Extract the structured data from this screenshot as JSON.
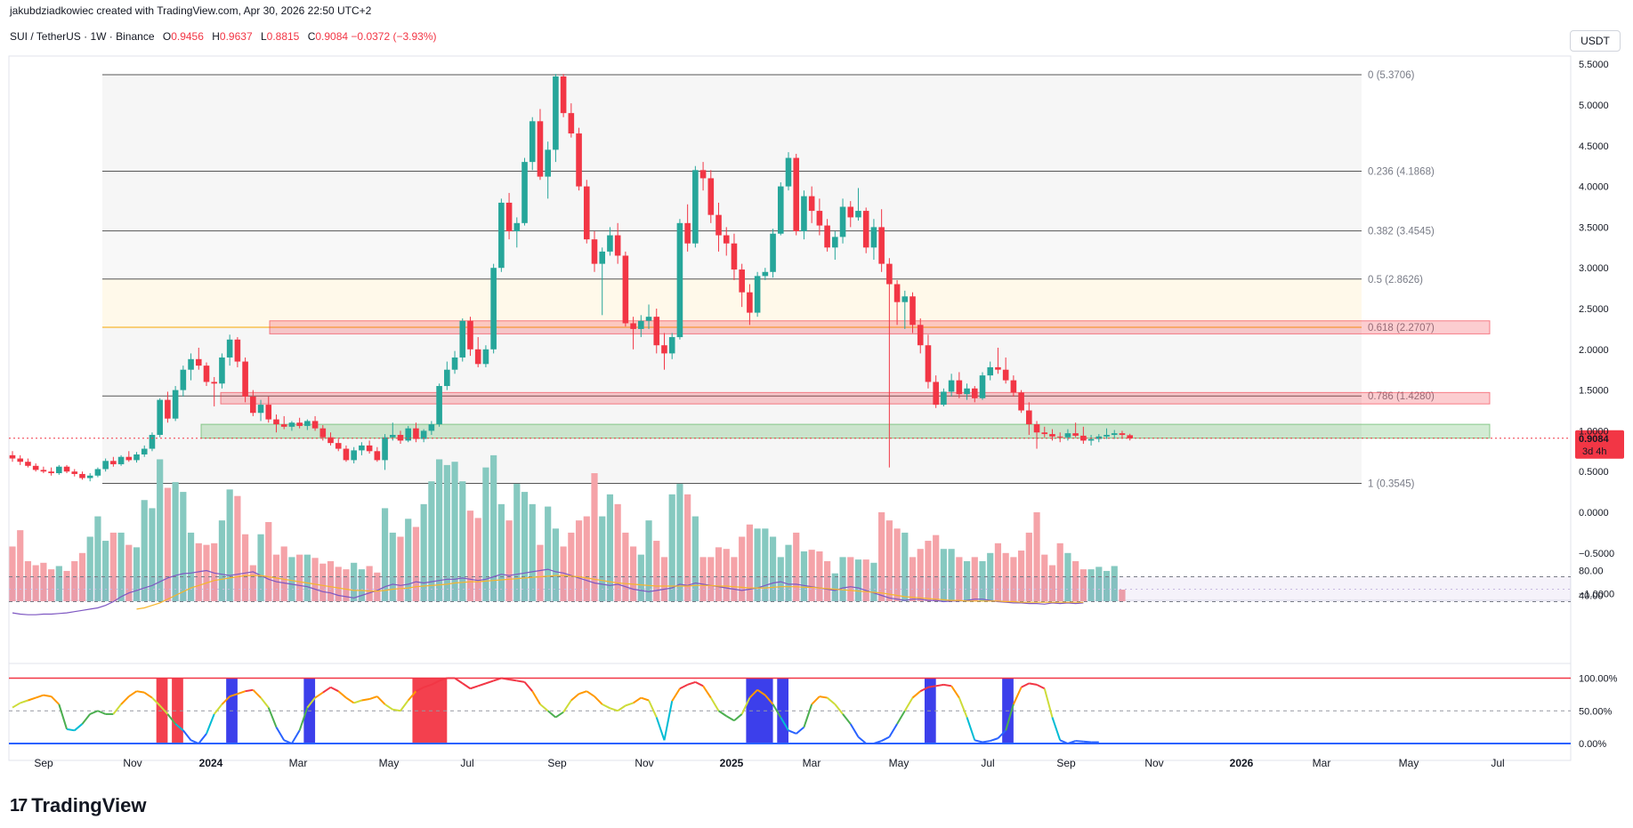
{
  "header": {
    "credit": "jakubdziadkowiec created with TradingView.com, Apr 30, 2026 22:50 UTC+2"
  },
  "symbol": {
    "name": "SUI / TetherUS · 1W · Binance",
    "o_label": "O",
    "o": "0.9456",
    "h_label": "H",
    "h": "0.9637",
    "l_label": "L",
    "l": "0.8815",
    "c_label": "C",
    "c": "0.9084",
    "change": "−0.0372 (−3.93%)"
  },
  "currency": "USDT",
  "brand": "TradingView",
  "colors": {
    "up": "#26a69a",
    "down": "#f23645",
    "fib_gold": "#f7a600",
    "volume_up": "#86c9c0",
    "volume_down": "#f5a3a8"
  },
  "chart_data": {
    "type": "candlestick",
    "price_axis": [
      "5.5000",
      "5.0000",
      "4.5000",
      "4.0000",
      "3.5000",
      "3.0000",
      "2.5000",
      "2.0000",
      "1.5000",
      "1.0000",
      "0.5000",
      "0.0000",
      "−0.5000",
      "−1.0000"
    ],
    "oscillator_axis": [
      "80.00",
      "40.00"
    ],
    "stoch_axis": [
      "100.00%",
      "50.00%",
      "0.00%"
    ],
    "x_labels": [
      "Sep",
      "Nov",
      "2024",
      "Mar",
      "May",
      "Jul",
      "Sep",
      "Nov",
      "2025",
      "Mar",
      "May",
      "Jul",
      "Sep",
      "Nov",
      "2026",
      "Mar",
      "May",
      "Jul"
    ],
    "last_price": "0.9084",
    "countdown": "3d 4h",
    "fib_levels": [
      {
        "ratio": 0,
        "label": "0 (5.3706)",
        "price": 5.3706
      },
      {
        "ratio": 0.236,
        "label": "0.236 (4.1868)",
        "price": 4.1868
      },
      {
        "ratio": 0.382,
        "label": "0.382 (3.4545)",
        "price": 3.4545
      },
      {
        "ratio": 0.5,
        "label": "0.5 (2.8626)",
        "price": 2.8626
      },
      {
        "ratio": 0.618,
        "label": "0.618 (2.2707)",
        "price": 2.2707
      },
      {
        "ratio": 0.786,
        "label": "0.786 (1.4280)",
        "price": 1.428
      },
      {
        "ratio": 1,
        "label": "1 (0.3545)",
        "price": 0.3545
      }
    ],
    "zones": [
      {
        "name": "resistance-zone-upper",
        "low": 2.19,
        "high": 2.35,
        "color": "#f23645"
      },
      {
        "name": "resistance-zone-lower",
        "low": 1.33,
        "high": 1.47,
        "color": "#f23645"
      },
      {
        "name": "support-zone",
        "low": 0.91,
        "high": 1.08,
        "color": "#4caf50"
      }
    ],
    "candles": [
      [
        0.7,
        0.75,
        0.62,
        0.66
      ],
      [
        0.66,
        0.7,
        0.58,
        0.62
      ],
      [
        0.62,
        0.66,
        0.55,
        0.57
      ],
      [
        0.57,
        0.6,
        0.5,
        0.52
      ],
      [
        0.52,
        0.56,
        0.48,
        0.5
      ],
      [
        0.5,
        0.55,
        0.45,
        0.48
      ],
      [
        0.48,
        0.58,
        0.46,
        0.56
      ],
      [
        0.56,
        0.58,
        0.48,
        0.5
      ],
      [
        0.5,
        0.53,
        0.44,
        0.47
      ],
      [
        0.47,
        0.5,
        0.4,
        0.42
      ],
      [
        0.42,
        0.48,
        0.38,
        0.45
      ],
      [
        0.45,
        0.55,
        0.43,
        0.53
      ],
      [
        0.53,
        0.66,
        0.5,
        0.63
      ],
      [
        0.63,
        0.68,
        0.56,
        0.59
      ],
      [
        0.59,
        0.7,
        0.57,
        0.68
      ],
      [
        0.68,
        0.75,
        0.62,
        0.64
      ],
      [
        0.64,
        0.74,
        0.61,
        0.71
      ],
      [
        0.71,
        0.82,
        0.68,
        0.78
      ],
      [
        0.78,
        0.98,
        0.75,
        0.95
      ],
      [
        0.95,
        1.4,
        0.92,
        1.38
      ],
      [
        1.38,
        1.48,
        1.1,
        1.15
      ],
      [
        1.15,
        1.55,
        1.12,
        1.5
      ],
      [
        1.5,
        1.8,
        1.42,
        1.75
      ],
      [
        1.75,
        1.95,
        1.62,
        1.88
      ],
      [
        1.88,
        2.02,
        1.75,
        1.8
      ],
      [
        1.8,
        1.84,
        1.55,
        1.6
      ],
      [
        1.6,
        1.66,
        1.3,
        1.58
      ],
      [
        1.58,
        1.95,
        1.52,
        1.9
      ],
      [
        1.9,
        2.18,
        1.8,
        2.12
      ],
      [
        2.12,
        2.15,
        1.78,
        1.85
      ],
      [
        1.85,
        1.9,
        1.35,
        1.42
      ],
      [
        1.42,
        1.5,
        1.18,
        1.22
      ],
      [
        1.22,
        1.38,
        1.12,
        1.32
      ],
      [
        1.32,
        1.42,
        1.1,
        1.14
      ],
      [
        1.14,
        1.2,
        0.98,
        1.08
      ],
      [
        1.08,
        1.18,
        1.02,
        1.05
      ],
      [
        1.05,
        1.12,
        1.0,
        1.1
      ],
      [
        1.1,
        1.16,
        1.03,
        1.06
      ],
      [
        1.06,
        1.14,
        1.01,
        1.12
      ],
      [
        1.12,
        1.18,
        1.0,
        1.03
      ],
      [
        1.03,
        1.07,
        0.88,
        0.92
      ],
      [
        0.92,
        0.98,
        0.82,
        0.85
      ],
      [
        0.85,
        0.9,
        0.75,
        0.78
      ],
      [
        0.78,
        0.82,
        0.62,
        0.64
      ],
      [
        0.64,
        0.8,
        0.6,
        0.76
      ],
      [
        0.76,
        0.86,
        0.7,
        0.82
      ],
      [
        0.82,
        0.88,
        0.72,
        0.75
      ],
      [
        0.75,
        0.8,
        0.62,
        0.64
      ],
      [
        0.64,
        0.96,
        0.52,
        0.92
      ],
      [
        0.92,
        1.1,
        0.88,
        0.95
      ],
      [
        0.95,
        1.0,
        0.84,
        0.88
      ],
      [
        0.88,
        1.06,
        0.86,
        1.03
      ],
      [
        1.03,
        1.1,
        0.86,
        0.9
      ],
      [
        0.9,
        1.02,
        0.86,
        1.0
      ],
      [
        1.0,
        1.12,
        0.95,
        1.08
      ],
      [
        1.08,
        1.58,
        1.05,
        1.55
      ],
      [
        1.55,
        1.85,
        1.5,
        1.75
      ],
      [
        1.75,
        1.98,
        1.7,
        1.9
      ],
      [
        1.9,
        2.38,
        1.85,
        2.35
      ],
      [
        2.35,
        2.4,
        1.92,
        2.0
      ],
      [
        2.0,
        2.15,
        1.78,
        1.82
      ],
      [
        1.82,
        2.05,
        1.78,
        2.0
      ],
      [
        2.0,
        3.05,
        1.95,
        3.0
      ],
      [
        3.0,
        3.85,
        2.95,
        3.8
      ],
      [
        3.8,
        3.92,
        3.35,
        3.45
      ],
      [
        3.45,
        3.62,
        3.25,
        3.55
      ],
      [
        3.55,
        4.35,
        3.52,
        4.3
      ],
      [
        4.3,
        4.85,
        4.2,
        4.8
      ],
      [
        4.8,
        4.95,
        4.08,
        4.12
      ],
      [
        4.12,
        4.55,
        3.85,
        4.45
      ],
      [
        4.45,
        5.38,
        4.3,
        5.35
      ],
      [
        5.35,
        5.38,
        4.85,
        4.9
      ],
      [
        4.9,
        5.02,
        4.6,
        4.65
      ],
      [
        4.65,
        4.72,
        3.95,
        4.0
      ],
      [
        4.0,
        4.08,
        3.3,
        3.35
      ],
      [
        3.35,
        3.45,
        2.95,
        3.05
      ],
      [
        3.05,
        3.25,
        2.42,
        3.2
      ],
      [
        3.2,
        3.5,
        3.15,
        3.4
      ],
      [
        3.4,
        3.55,
        3.05,
        3.15
      ],
      [
        3.15,
        3.2,
        2.28,
        2.32
      ],
      [
        2.32,
        2.4,
        2.0,
        2.25
      ],
      [
        2.25,
        2.42,
        2.15,
        2.35
      ],
      [
        2.35,
        2.55,
        2.25,
        2.4
      ],
      [
        2.4,
        2.5,
        1.95,
        2.05
      ],
      [
        2.05,
        2.2,
        1.75,
        1.95
      ],
      [
        1.95,
        2.2,
        1.88,
        2.15
      ],
      [
        2.15,
        3.6,
        2.12,
        3.55
      ],
      [
        3.55,
        3.78,
        3.2,
        3.3
      ],
      [
        3.3,
        4.25,
        3.25,
        4.2
      ],
      [
        4.2,
        4.3,
        3.95,
        4.1
      ],
      [
        4.1,
        4.2,
        3.55,
        3.65
      ],
      [
        3.65,
        3.8,
        3.2,
        3.4
      ],
      [
        3.4,
        3.5,
        3.15,
        3.3
      ],
      [
        3.3,
        3.42,
        2.85,
        2.98
      ],
      [
        2.98,
        3.05,
        2.52,
        2.7
      ],
      [
        2.7,
        2.8,
        2.3,
        2.45
      ],
      [
        2.45,
        2.95,
        2.4,
        2.9
      ],
      [
        2.9,
        3.0,
        2.85,
        2.95
      ],
      [
        2.95,
        3.48,
        2.88,
        3.42
      ],
      [
        3.42,
        4.05,
        3.4,
        4.0
      ],
      [
        4.0,
        4.42,
        3.95,
        4.35
      ],
      [
        4.35,
        4.4,
        3.4,
        3.45
      ],
      [
        3.45,
        3.95,
        3.35,
        3.88
      ],
      [
        3.88,
        4.0,
        3.55,
        3.7
      ],
      [
        3.7,
        3.85,
        3.4,
        3.52
      ],
      [
        3.52,
        3.6,
        3.2,
        3.25
      ],
      [
        3.25,
        3.45,
        3.1,
        3.38
      ],
      [
        3.38,
        3.85,
        3.3,
        3.75
      ],
      [
        3.75,
        3.82,
        3.5,
        3.62
      ],
      [
        3.62,
        3.98,
        3.58,
        3.7
      ],
      [
        3.7,
        3.74,
        3.18,
        3.25
      ],
      [
        3.25,
        3.6,
        3.1,
        3.5
      ],
      [
        3.5,
        3.72,
        2.95,
        3.05
      ],
      [
        3.05,
        3.12,
        0.55,
        2.8
      ],
      [
        2.8,
        2.85,
        2.3,
        2.58
      ],
      [
        2.58,
        2.72,
        2.25,
        2.65
      ],
      [
        2.65,
        2.7,
        2.2,
        2.3
      ],
      [
        2.3,
        2.38,
        1.95,
        2.05
      ],
      [
        2.05,
        2.18,
        1.52,
        1.6
      ],
      [
        1.6,
        1.68,
        1.28,
        1.32
      ],
      [
        1.32,
        1.52,
        1.3,
        1.48
      ],
      [
        1.48,
        1.7,
        1.42,
        1.62
      ],
      [
        1.62,
        1.72,
        1.4,
        1.45
      ],
      [
        1.45,
        1.58,
        1.38,
        1.52
      ],
      [
        1.52,
        1.55,
        1.35,
        1.4
      ],
      [
        1.4,
        1.72,
        1.38,
        1.68
      ],
      [
        1.68,
        1.85,
        1.62,
        1.78
      ],
      [
        1.78,
        2.02,
        1.7,
        1.75
      ],
      [
        1.75,
        1.9,
        1.58,
        1.62
      ],
      [
        1.62,
        1.68,
        1.42,
        1.47
      ],
      [
        1.47,
        1.5,
        1.22,
        1.25
      ],
      [
        1.25,
        1.35,
        0.95,
        1.08
      ],
      [
        1.08,
        1.12,
        0.78,
        0.98
      ],
      [
        0.98,
        1.05,
        0.92,
        0.96
      ],
      [
        0.96,
        1.02,
        0.88,
        0.93
      ],
      [
        0.93,
        0.98,
        0.86,
        0.92
      ],
      [
        0.92,
        1.02,
        0.88,
        0.97
      ],
      [
        0.97,
        1.1,
        0.92,
        0.94
      ],
      [
        0.94,
        1.05,
        0.84,
        0.88
      ],
      [
        0.88,
        0.95,
        0.82,
        0.9
      ],
      [
        0.9,
        0.96,
        0.86,
        0.93
      ],
      [
        0.93,
        1.03,
        0.9,
        0.95
      ],
      [
        0.95,
        1.01,
        0.9,
        0.97
      ],
      [
        0.97,
        1.0,
        0.91,
        0.95
      ],
      [
        0.9456,
        0.9637,
        0.8815,
        0.9084
      ]
    ],
    "volume": [
      -0.42,
      -0.22,
      -0.6,
      -0.65,
      -0.62,
      -0.7,
      -0.66,
      -0.72,
      -0.6,
      -0.5,
      -0.3,
      -0.05,
      -0.35,
      -0.25,
      -0.25,
      -0.4,
      -0.43,
      0.15,
      0.05,
      0.65,
      0.3,
      0.37,
      0.25,
      -0.25,
      -0.38,
      -0.4,
      -0.38,
      -0.1,
      0.28,
      0.2,
      -0.27,
      -0.65,
      -0.27,
      -0.12,
      -0.52,
      -0.42,
      -0.55,
      -0.52,
      -0.52,
      -0.56,
      -0.63,
      -0.6,
      -0.67,
      -0.7,
      -0.62,
      -0.7,
      -0.66,
      -0.74,
      0.05,
      -0.25,
      -0.3,
      -0.08,
      -0.18,
      0.1,
      0.38,
      0.65,
      0.58,
      0.62,
      0.38,
      0.02,
      -0.07,
      0.55,
      0.7,
      0.1,
      -0.1,
      0.35,
      0.25,
      0.1,
      -0.4,
      0.07,
      -0.2,
      -0.42,
      -0.25,
      -0.1,
      -0.05,
      0.48,
      -0.05,
      0.22,
      0.1,
      -0.25,
      -0.42,
      -0.52,
      -0.1,
      -0.35,
      -0.55,
      0.22,
      0.35,
      0.22,
      -0.05,
      -0.55,
      -0.55,
      -0.43,
      -0.45,
      -0.55,
      -0.3,
      -0.15,
      -0.2,
      -0.2,
      -0.3,
      -0.55,
      -0.4,
      -0.25,
      -0.48,
      -0.46,
      -0.48,
      -0.6,
      -0.75,
      -0.55,
      -0.55,
      -0.58,
      -0.58,
      -0.62,
      0.0,
      -0.1,
      -0.2,
      -0.25,
      -0.55,
      -0.45,
      -0.35,
      -0.28,
      -0.45,
      -0.45,
      -0.55,
      -0.6,
      -0.55,
      -0.6,
      -0.5,
      -0.38,
      -0.5,
      -0.55,
      -0.47,
      -0.25,
      0.0,
      -0.52,
      -0.65,
      -0.38,
      -0.5,
      -0.6,
      -0.7,
      -0.7,
      -0.67,
      -0.72,
      -0.66,
      -0.95
    ],
    "oscillator": [
      12,
      10,
      9,
      9,
      10,
      10,
      11,
      12,
      14,
      16,
      18,
      20,
      24,
      30,
      38,
      44,
      48,
      52,
      56,
      62,
      68,
      72,
      75,
      76,
      78,
      80,
      76,
      74,
      72,
      74,
      76,
      78,
      72,
      66,
      62,
      60,
      58,
      56,
      54,
      50,
      46,
      44,
      40,
      38,
      36,
      40,
      44,
      48,
      54,
      58,
      56,
      58,
      62,
      60,
      62,
      64,
      66,
      66,
      68,
      66,
      64,
      66,
      70,
      74,
      72,
      74,
      76,
      78,
      80,
      82,
      78,
      76,
      72,
      68,
      64,
      60,
      58,
      56,
      58,
      54,
      50,
      48,
      46,
      48,
      50,
      52,
      58,
      56,
      60,
      58,
      56,
      54,
      52,
      50,
      48,
      50,
      52,
      56,
      60,
      62,
      58,
      58,
      56,
      54,
      52,
      50,
      48,
      52,
      54,
      52,
      48,
      44,
      40,
      36,
      34,
      32,
      34,
      34,
      32,
      32,
      30,
      31,
      31,
      32,
      34,
      34,
      32,
      30,
      29,
      28,
      28,
      27,
      27,
      26,
      28,
      27,
      28,
      27,
      28
    ],
    "oscillator_ma": [
      null,
      null,
      null,
      null,
      null,
      null,
      null,
      null,
      null,
      null,
      null,
      null,
      null,
      null,
      null,
      null,
      18,
      20,
      24,
      28,
      34,
      40,
      46,
      52,
      56,
      60,
      64,
      66,
      68,
      70,
      72,
      72,
      72,
      70,
      68,
      66,
      64,
      62,
      60,
      58,
      56,
      54,
      52,
      50,
      48,
      48,
      47,
      47,
      48,
      50,
      51,
      52,
      54,
      55,
      56,
      57,
      58,
      60,
      61,
      62,
      62,
      63,
      64,
      65,
      66,
      67,
      68,
      69,
      70,
      71,
      72,
      72,
      71,
      70,
      68,
      66,
      64,
      62,
      60,
      59,
      58,
      57,
      56,
      55,
      55,
      55,
      55,
      55,
      56,
      56,
      56,
      55,
      55,
      54,
      53,
      52,
      52,
      52,
      53,
      54,
      54,
      54,
      53,
      53,
      52,
      51,
      50,
      49,
      48,
      47,
      46,
      45,
      44,
      42,
      40,
      38,
      37,
      36,
      35,
      34,
      33,
      32,
      32,
      31,
      31,
      31,
      31,
      31,
      30,
      30,
      29,
      29,
      29,
      29,
      29,
      29,
      29,
      29,
      29
    ],
    "stoch": [
      55,
      62,
      66,
      70,
      74,
      72,
      60,
      22,
      20,
      30,
      45,
      50,
      45,
      45,
      60,
      72,
      80,
      78,
      70,
      58,
      45,
      30,
      20,
      5,
      0,
      15,
      45,
      60,
      72,
      76,
      80,
      82,
      70,
      55,
      25,
      5,
      0,
      20,
      55,
      70,
      78,
      86,
      80,
      70,
      62,
      66,
      68,
      72,
      60,
      52,
      50,
      66,
      80,
      86,
      90,
      96,
      100,
      100,
      92,
      84,
      88,
      92,
      96,
      100,
      98,
      96,
      94,
      80,
      60,
      50,
      40,
      48,
      66,
      76,
      80,
      72,
      60,
      54,
      50,
      58,
      62,
      70,
      66,
      40,
      5,
      65,
      84,
      90,
      94,
      88,
      70,
      50,
      42,
      35,
      45,
      70,
      82,
      74,
      60,
      40,
      20,
      15,
      25,
      60,
      72,
      70,
      60,
      45,
      30,
      10,
      0,
      0,
      4,
      10,
      30,
      50,
      70,
      80,
      86,
      88,
      90,
      88,
      70,
      40,
      5,
      2,
      4,
      8,
      20,
      60,
      86,
      92,
      90,
      84,
      40,
      5,
      0,
      4,
      3,
      2,
      2
    ],
    "stoch_zones": [
      {
        "start": 19,
        "end": 20,
        "color": "#f23645"
      },
      {
        "start": 21,
        "end": 22,
        "color": "#f23645"
      },
      {
        "start": 28,
        "end": 29,
        "color": "#3135ea"
      },
      {
        "start": 38,
        "end": 39,
        "color": "#3135ea"
      },
      {
        "start": 52,
        "end": 56,
        "color": "#f23645"
      },
      {
        "start": 95,
        "end": 98,
        "color": "#3135ea"
      },
      {
        "start": 99,
        "end": 100,
        "color": "#3135ea"
      },
      {
        "start": 118,
        "end": 119,
        "color": "#3135ea"
      },
      {
        "start": 128,
        "end": 129,
        "color": "#3135ea"
      }
    ]
  }
}
